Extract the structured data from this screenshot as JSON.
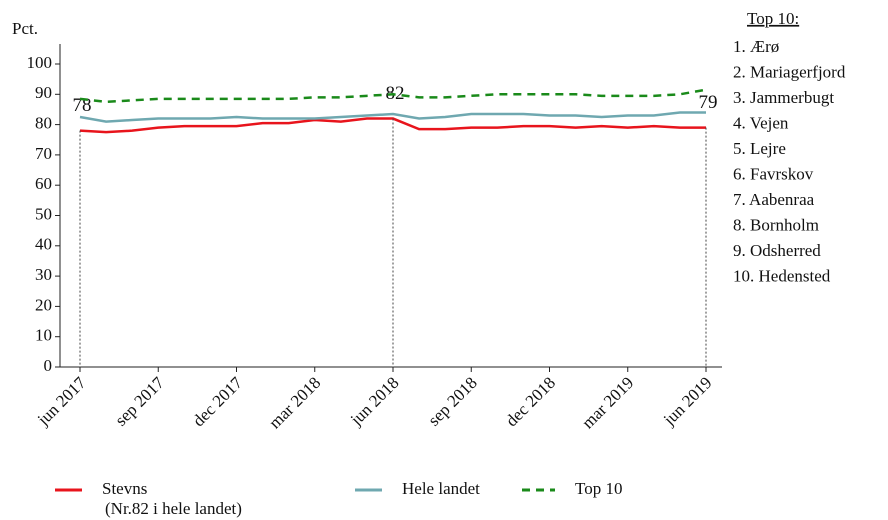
{
  "chart_data": {
    "type": "line",
    "y_label": "Pct.",
    "categories": [
      "jun 2017",
      null,
      null,
      "sep 2017",
      null,
      null,
      "dec 2017",
      null,
      null,
      "mar 2018",
      null,
      null,
      "jun 2018",
      null,
      null,
      "sep 2018",
      null,
      null,
      "dec 2018",
      null,
      null,
      "mar 2019",
      null,
      null,
      "jun 2019"
    ],
    "ylim": [
      0,
      100
    ],
    "yticks": [
      0,
      10,
      20,
      30,
      40,
      50,
      60,
      70,
      80,
      90,
      100
    ],
    "grid": false,
    "series": [
      {
        "name": "Stevns",
        "note": "(Nr.82 i hele landet)",
        "color": "#e8141c",
        "dash": false,
        "values": [
          78,
          77.5,
          78,
          79,
          79.5,
          79.5,
          79.5,
          80.5,
          80.5,
          81.5,
          81,
          82,
          82,
          78.5,
          78.5,
          79,
          79,
          79.5,
          79.5,
          79,
          79.5,
          79,
          79.5,
          79,
          79
        ],
        "value_labels": [
          "78",
          null,
          null,
          null,
          null,
          null,
          null,
          null,
          null,
          null,
          null,
          null,
          "82",
          null,
          null,
          null,
          null,
          null,
          null,
          null,
          null,
          null,
          null,
          null,
          "79"
        ]
      },
      {
        "name": "Hele landet",
        "color": "#6fa8b0",
        "dash": false,
        "values": [
          82.5,
          81,
          81.5,
          82,
          82,
          82,
          82.5,
          82,
          82,
          82,
          82.5,
          83,
          83.5,
          82,
          82.5,
          83.5,
          83.5,
          83.5,
          83,
          83,
          82.5,
          83,
          83,
          84,
          84
        ]
      },
      {
        "name": "Top 10",
        "color": "#1a8a1a",
        "dash": true,
        "values": [
          88.5,
          87.5,
          88,
          88.5,
          88.5,
          88.5,
          88.5,
          88.5,
          88.5,
          89,
          89,
          89.5,
          90,
          89,
          89,
          89.5,
          90,
          90,
          90,
          90,
          89.5,
          89.5,
          89.5,
          90,
          91.5
        ]
      }
    ],
    "side_list": {
      "title": "Top 10:",
      "items": [
        "1. Ærø",
        "2. Mariagerfjord",
        "3. Jammerbugt",
        "4. Vejen",
        "5. Lejre",
        "6. Favrskov",
        "7. Aabenraa",
        "8. Bornholm",
        "9. Odsherred",
        "10. Hedensted"
      ]
    }
  }
}
